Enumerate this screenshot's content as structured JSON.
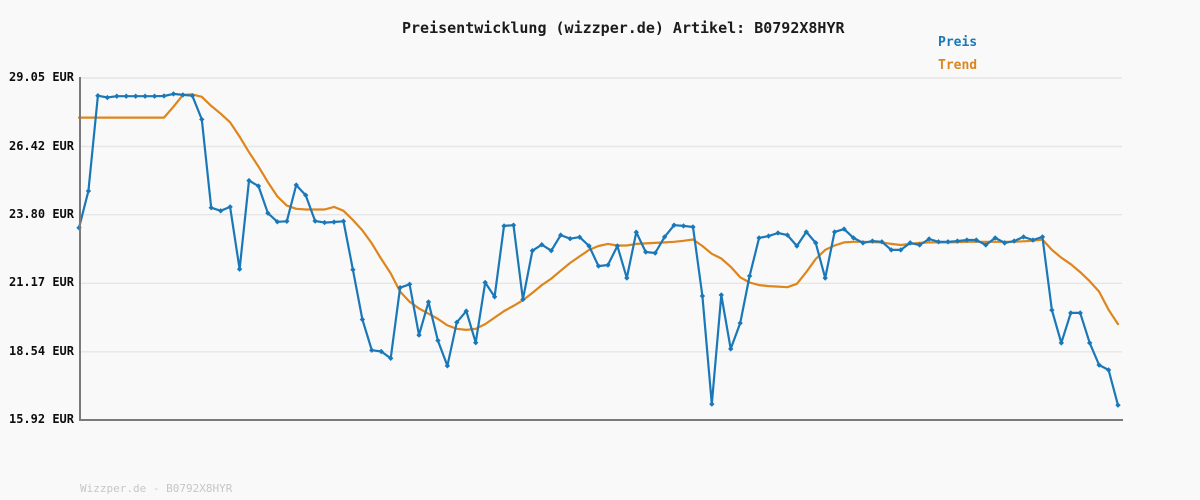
{
  "title": "Preisentwicklung (wizzper.de) Artikel: B0792X8HYR",
  "footer": "Wizzper.de - B0792X8HYR",
  "colors": {
    "background": "#f9f9f9",
    "grid": "#e6e6e6",
    "axis": "#7a7a7a",
    "price": "#1a78b8",
    "trend": "#de851b",
    "title_text": "#1c1c1c",
    "tick_text": "#0d0d0d",
    "footer_text": "#c6c6c6"
  },
  "chart_data": {
    "type": "line",
    "title": "Preisentwicklung (wizzper.de) Artikel: B0792X8HYR",
    "currency": "EUR",
    "grid": "horizontal",
    "legend_position": "top-right",
    "x_axis_labels_visible": false,
    "ylim": [
      15.92,
      29.05
    ],
    "yticks": [
      29.05,
      26.42,
      23.8,
      21.17,
      18.54,
      15.92
    ],
    "ytick_labels": [
      "29.05 EUR",
      "26.42 EUR",
      "23.80 EUR",
      "21.17 EUR",
      "18.54 EUR",
      "15.92 EUR"
    ],
    "series": [
      {
        "name": "Preis",
        "color": "#1a78b8",
        "markers": true,
        "values": [
          23.3,
          24.71,
          28.37,
          28.3,
          28.35,
          28.35,
          28.35,
          28.35,
          28.35,
          28.36,
          28.44,
          28.4,
          28.37,
          27.46,
          24.07,
          23.95,
          24.1,
          21.71,
          25.11,
          24.9,
          23.86,
          23.53,
          23.55,
          24.94,
          24.55,
          23.56,
          23.5,
          23.52,
          23.55,
          21.69,
          19.78,
          18.6,
          18.55,
          18.29,
          21.0,
          21.13,
          19.18,
          20.45,
          18.97,
          18.0,
          19.67,
          20.1,
          18.89,
          21.2,
          20.65,
          23.37,
          23.4,
          20.55,
          22.42,
          22.65,
          22.42,
          23.02,
          22.88,
          22.94,
          22.6,
          21.83,
          21.87,
          22.6,
          21.37,
          23.13,
          22.37,
          22.33,
          22.95,
          23.4,
          23.37,
          23.33,
          20.68,
          16.53,
          20.72,
          18.65,
          19.64,
          21.45,
          22.91,
          22.98,
          23.1,
          23.02,
          22.6,
          23.14,
          22.72,
          21.37,
          23.14,
          23.25,
          22.91,
          22.72,
          22.79,
          22.76,
          22.45,
          22.45,
          22.72,
          22.64,
          22.87,
          22.76,
          22.76,
          22.79,
          22.83,
          22.83,
          22.64,
          22.91,
          22.72,
          22.79,
          22.95,
          22.83,
          22.95,
          20.14,
          18.88,
          20.03,
          20.03,
          18.88,
          18.03,
          17.84,
          16.49
        ]
      },
      {
        "name": "Trend",
        "color": "#de851b",
        "markers": false,
        "values": [
          27.53,
          27.53,
          27.53,
          27.53,
          27.53,
          27.53,
          27.53,
          27.53,
          27.53,
          27.53,
          27.95,
          28.4,
          28.42,
          28.33,
          27.98,
          27.68,
          27.35,
          26.8,
          26.2,
          25.65,
          25.05,
          24.5,
          24.15,
          24.03,
          24.0,
          24.0,
          24.0,
          24.1,
          23.95,
          23.6,
          23.2,
          22.7,
          22.1,
          21.55,
          20.85,
          20.46,
          20.2,
          20.0,
          19.8,
          19.55,
          19.42,
          19.38,
          19.42,
          19.6,
          19.85,
          20.1,
          20.3,
          20.52,
          20.8,
          21.1,
          21.35,
          21.65,
          21.95,
          22.2,
          22.45,
          22.6,
          22.68,
          22.62,
          22.62,
          22.68,
          22.7,
          22.72,
          22.74,
          22.76,
          22.8,
          22.85,
          22.6,
          22.3,
          22.12,
          21.8,
          21.4,
          21.2,
          21.1,
          21.06,
          21.04,
          21.02,
          21.15,
          21.6,
          22.1,
          22.45,
          22.62,
          22.74,
          22.76,
          22.76,
          22.75,
          22.74,
          22.68,
          22.64,
          22.68,
          22.72,
          22.74,
          22.74,
          22.74,
          22.75,
          22.76,
          22.76,
          22.76,
          22.76,
          22.76,
          22.76,
          22.78,
          22.8,
          22.85,
          22.45,
          22.15,
          21.9,
          21.6,
          21.25,
          20.85,
          20.15,
          19.6
        ]
      }
    ]
  }
}
